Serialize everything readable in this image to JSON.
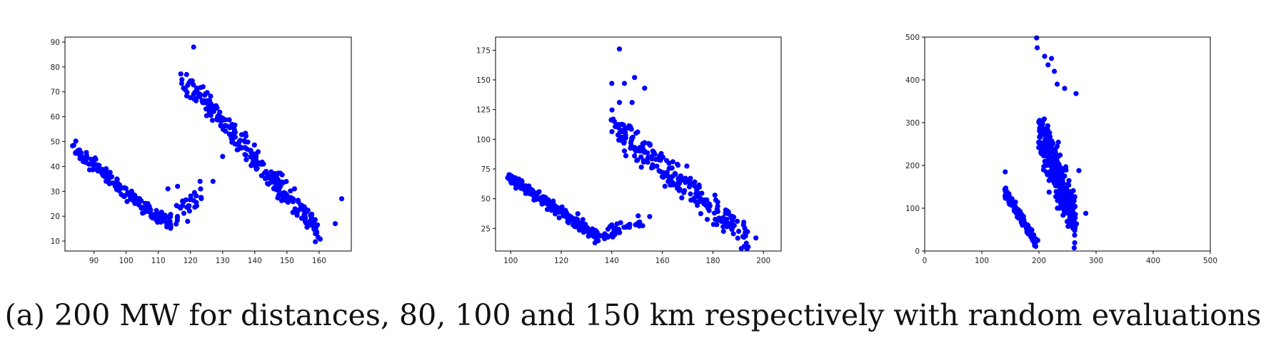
{
  "caption": "(a) 200 MW for distances, 80, 100 and 150 km respectively with random evaluations",
  "chart_data": [
    {
      "type": "scatter",
      "title": "",
      "xlabel": "",
      "ylabel": "",
      "xlim": [
        81,
        170
      ],
      "ylim": [
        6,
        92
      ],
      "xticks": [
        90,
        100,
        110,
        120,
        130,
        140,
        150,
        160
      ],
      "yticks": [
        10,
        20,
        30,
        40,
        50,
        60,
        70,
        80,
        90
      ],
      "grid": false,
      "color": "#0000ff",
      "segments": [
        {
          "x_from": 84,
          "x_to": 112,
          "y_from": 47,
          "y_to": 17,
          "spread": 2.0,
          "n": 160
        },
        {
          "x_from": 112,
          "x_to": 124,
          "y_from": 17,
          "y_to": 28,
          "spread": 3.0,
          "n": 45
        },
        {
          "x_from": 117,
          "x_to": 125,
          "y_from": 74,
          "y_to": 66,
          "spread": 3.0,
          "n": 35
        },
        {
          "x_from": 124,
          "x_to": 160,
          "y_from": 66,
          "y_to": 14,
          "spread": 3.5,
          "n": 230
        }
      ],
      "points": [
        [
          121,
          88
        ],
        [
          167,
          27
        ],
        [
          165,
          17
        ],
        [
          113,
          31
        ],
        [
          127,
          34
        ],
        [
          123,
          34
        ],
        [
          130,
          44
        ],
        [
          116,
          32
        ]
      ]
    },
    {
      "type": "scatter",
      "title": "",
      "xlabel": "",
      "ylabel": "",
      "xlim": [
        94,
        207
      ],
      "ylim": [
        6,
        186
      ],
      "xticks": [
        100,
        120,
        140,
        160,
        180,
        200
      ],
      "yticks": [
        25,
        50,
        75,
        100,
        125,
        150,
        175
      ],
      "grid": false,
      "color": "#0000ff",
      "segments": [
        {
          "x_from": 99,
          "x_to": 135,
          "y_from": 68,
          "y_to": 18,
          "spread": 3.5,
          "n": 200
        },
        {
          "x_from": 135,
          "x_to": 152,
          "y_from": 18,
          "y_to": 32,
          "spread": 4.0,
          "n": 35
        },
        {
          "x_from": 140,
          "x_to": 194,
          "y_from": 112,
          "y_to": 17,
          "spread": 9.0,
          "n": 230
        }
      ],
      "points": [
        [
          143,
          176
        ],
        [
          149,
          152
        ],
        [
          140,
          147
        ],
        [
          145,
          147
        ],
        [
          153,
          143
        ],
        [
          143,
          131
        ],
        [
          148,
          131
        ],
        [
          197,
          17
        ],
        [
          140,
          28
        ],
        [
          147,
          26
        ],
        [
          155,
          35
        ]
      ]
    },
    {
      "type": "scatter",
      "title": "",
      "xlabel": "",
      "ylabel": "",
      "xlim": [
        0,
        500
      ],
      "ylim": [
        0,
        500
      ],
      "xticks": [
        0,
        100,
        200,
        300,
        400,
        500
      ],
      "yticks": [
        0,
        100,
        200,
        300,
        400,
        500
      ],
      "grid": false,
      "color": "#0000ff",
      "segments": [
        {
          "x_from": 140,
          "x_to": 195,
          "y_from": 140,
          "y_to": 20,
          "spread": 9.0,
          "n": 160
        },
        {
          "x_from": 200,
          "x_to": 265,
          "y_from": 280,
          "y_to": 70,
          "spread": 45.0,
          "n": 330
        }
      ],
      "points": [
        [
          196,
          498
        ],
        [
          197,
          475
        ],
        [
          210,
          455
        ],
        [
          216,
          435
        ],
        [
          227,
          420
        ],
        [
          232,
          390
        ],
        [
          222,
          450
        ],
        [
          282,
          88
        ],
        [
          270,
          188
        ],
        [
          265,
          368
        ],
        [
          245,
          380
        ],
        [
          141,
          185
        ],
        [
          198,
          25
        ],
        [
          194,
          28
        ]
      ]
    }
  ]
}
